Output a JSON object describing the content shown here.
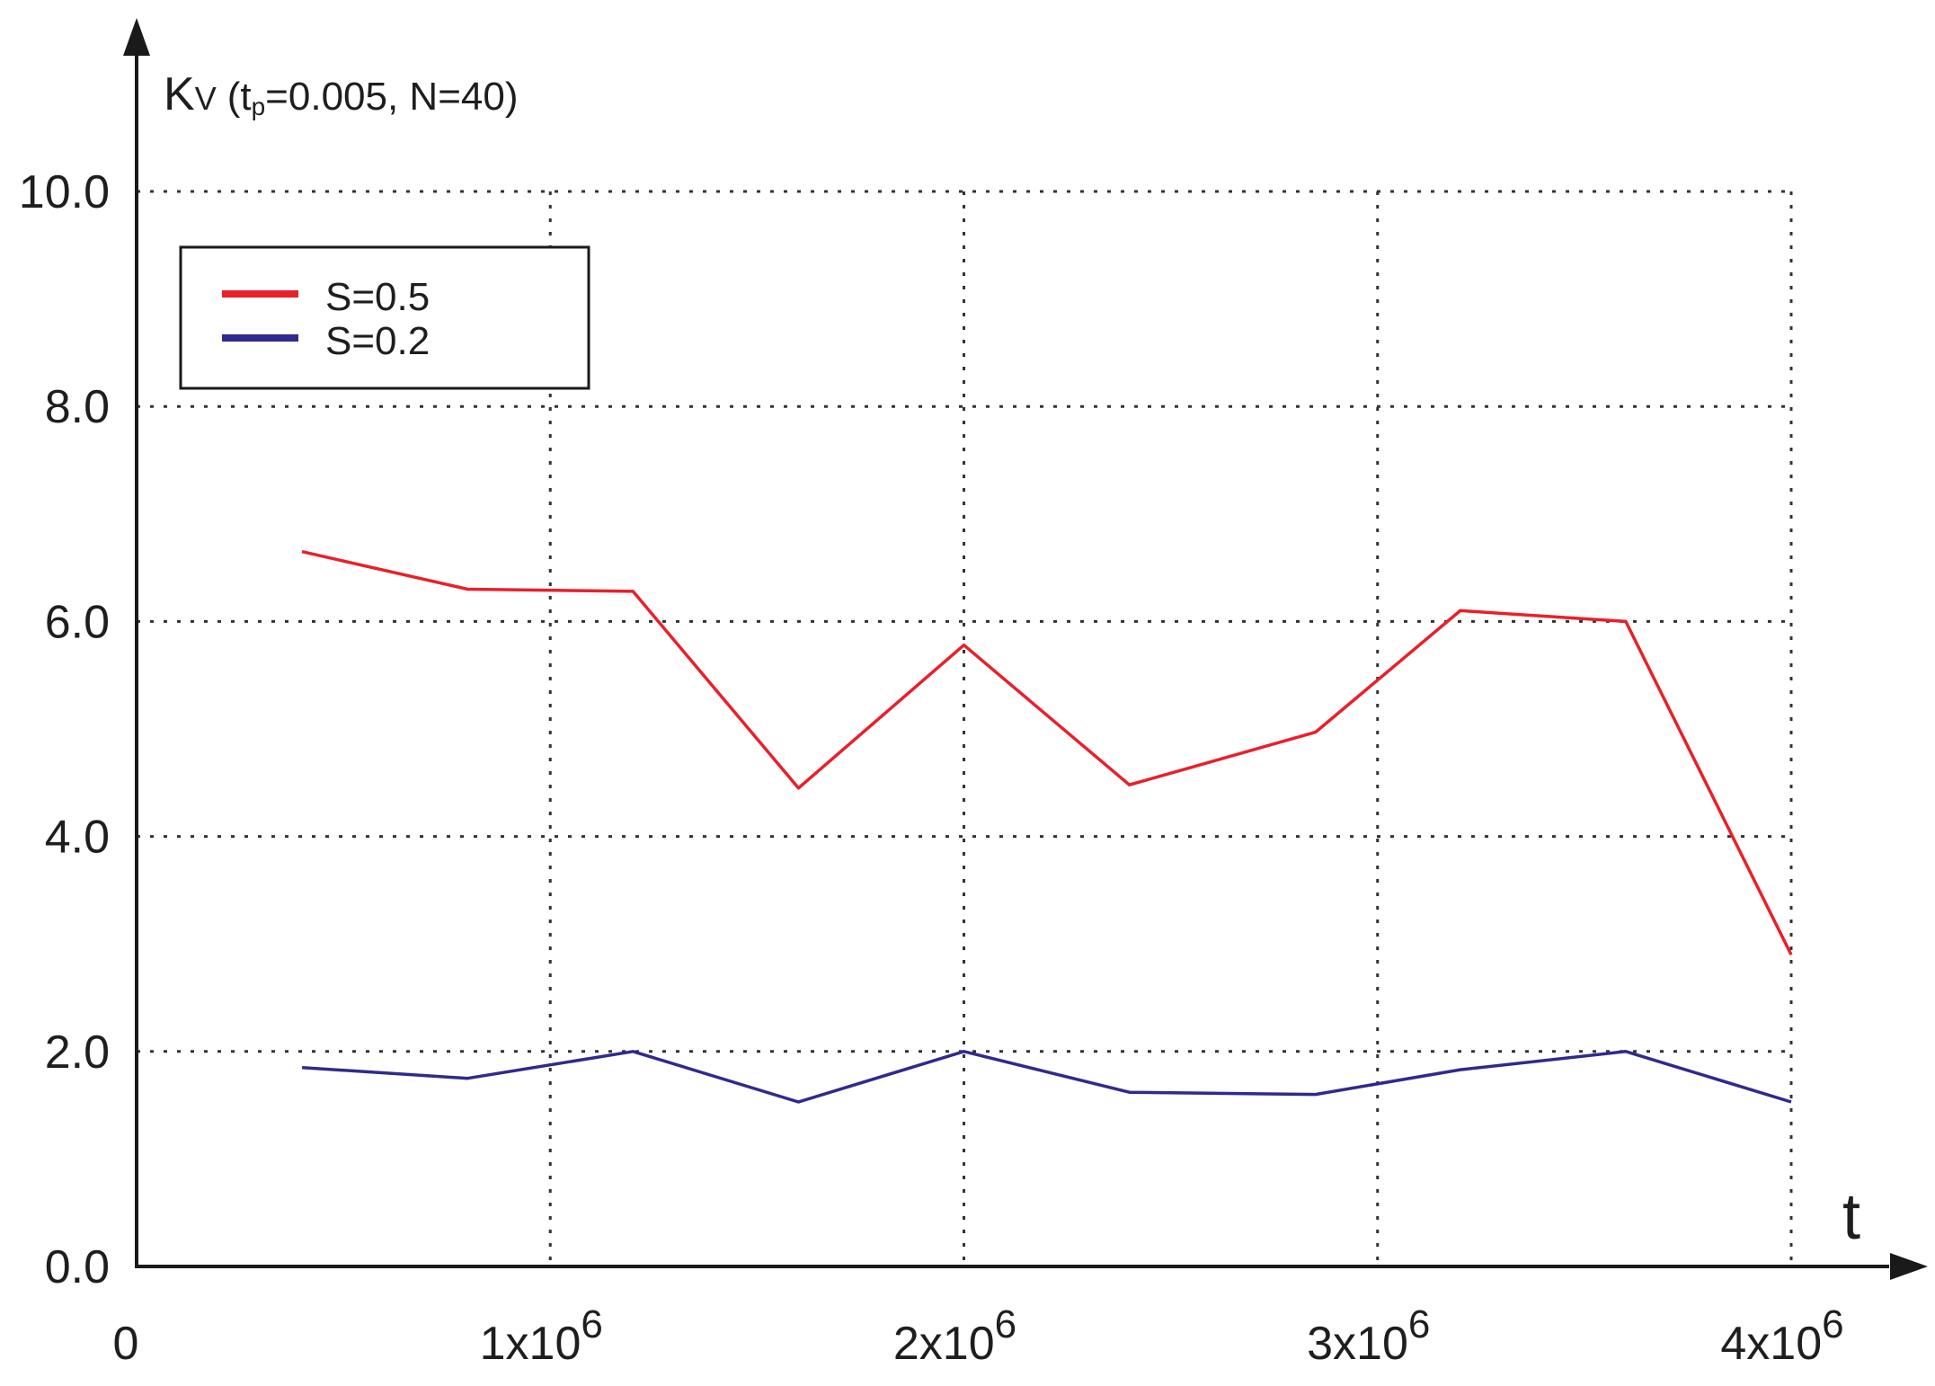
{
  "chart_data": {
    "type": "line",
    "ylabel_main": "K",
    "ylabel_sub": "V",
    "ylabel_params_open": "(t",
    "ylabel_params_sub": "p",
    "ylabel_params_rest": "=0.005,  N=40)",
    "xlabel": "t",
    "xlim": [
      0,
      4000000
    ],
    "ylim": [
      0,
      10
    ],
    "grid": true,
    "grid_style": "dotted",
    "legend_position": "top-left",
    "x_ticks": [
      {
        "base": "0",
        "exp": ""
      },
      {
        "base": "1x10",
        "exp": "6"
      },
      {
        "base": "2x10",
        "exp": "6"
      },
      {
        "base": "3x10",
        "exp": "6"
      },
      {
        "base": "4x10",
        "exp": "6"
      }
    ],
    "x_tick_values": [
      0,
      1000000,
      2000000,
      3000000,
      4000000
    ],
    "y_ticks": [
      "0.0",
      "2.0",
      "4.0",
      "6.0",
      "8.0",
      "10.0"
    ],
    "y_tick_values": [
      0,
      2,
      4,
      6,
      8,
      10
    ],
    "series": [
      {
        "name": "S=0.5",
        "color": "#e8202a",
        "x": [
          400000,
          800000,
          1200000,
          1600000,
          2000000,
          2400000,
          2850000,
          3200000,
          3600000,
          4000000
        ],
        "y": [
          6.65,
          6.3,
          6.28,
          4.45,
          5.78,
          4.48,
          4.97,
          6.1,
          6.0,
          2.9
        ]
      },
      {
        "name": "S=0.2",
        "color": "#302a8c",
        "x": [
          400000,
          800000,
          1200000,
          1600000,
          2000000,
          2400000,
          2850000,
          3200000,
          3600000,
          4000000
        ],
        "y": [
          1.85,
          1.75,
          2.0,
          1.53,
          2.0,
          1.62,
          1.6,
          1.83,
          2.0,
          1.53
        ]
      }
    ]
  }
}
